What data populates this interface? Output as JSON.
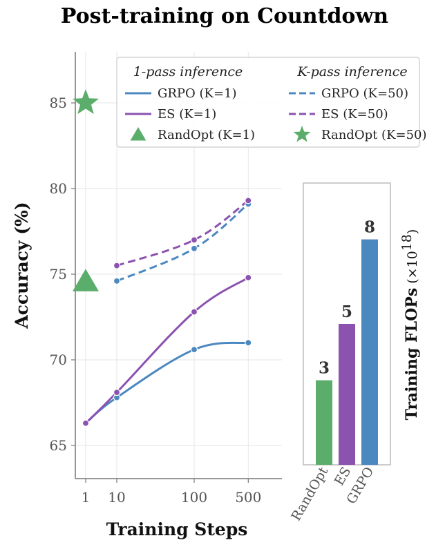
{
  "title": "Post-training on Countdown",
  "colors": {
    "grpo": "#4c88c0",
    "es": "#8b52b0",
    "randopt": "#5aad6a"
  },
  "chart_data": [
    {
      "type": "line",
      "xlabel": "Training Steps",
      "ylabel": "Accuracy (%)",
      "xscale": "log",
      "xticks": [
        {
          "value": 1,
          "label": "1"
        },
        {
          "value": 10,
          "label": "10"
        },
        {
          "value": 100,
          "label": "100"
        },
        {
          "value": 500,
          "label": "500"
        }
      ],
      "yticks": [
        {
          "value": 65,
          "label": "65"
        },
        {
          "value": 70,
          "label": "70"
        },
        {
          "value": 75,
          "label": "75"
        },
        {
          "value": 80,
          "label": "80"
        },
        {
          "value": 85,
          "label": "85"
        }
      ],
      "ylim": [
        63.0,
        88.0
      ],
      "grid": true,
      "legend": {
        "placement": "top-right",
        "headers": [
          "1-pass inference",
          "K-pass inference"
        ],
        "entries": [
          {
            "label": "GRPO (K=1)",
            "marker": "solid-line",
            "color_key": "grpo"
          },
          {
            "label": "ES (K=1)",
            "marker": "solid-line",
            "color_key": "es"
          },
          {
            "label": "RandOpt (K=1)",
            "marker": "triangle",
            "color_key": "randopt"
          },
          {
            "label": "GRPO (K=50)",
            "marker": "dashed-line",
            "color_key": "grpo"
          },
          {
            "label": "ES (K=50)",
            "marker": "dashed-line",
            "color_key": "es"
          },
          {
            "label": "RandOpt (K=50)",
            "marker": "star",
            "color_key": "randopt"
          }
        ]
      },
      "series": [
        {
          "name": "GRPO (K=1)",
          "style": "solid",
          "color_key": "grpo",
          "x": [
            1,
            10,
            100,
            500
          ],
          "y": [
            66.3,
            67.8,
            70.6,
            71.0
          ]
        },
        {
          "name": "ES (K=1)",
          "style": "solid",
          "color_key": "es",
          "x": [
            1,
            10,
            100,
            500
          ],
          "y": [
            66.3,
            68.1,
            72.8,
            74.8
          ]
        },
        {
          "name": "GRPO (K=50)",
          "style": "dashed",
          "color_key": "grpo",
          "x": [
            10,
            100,
            500
          ],
          "y": [
            74.6,
            76.5,
            79.1
          ]
        },
        {
          "name": "ES (K=50)",
          "style": "dashed",
          "color_key": "es",
          "x": [
            10,
            100,
            500
          ],
          "y": [
            75.5,
            77.0,
            79.3
          ]
        }
      ],
      "points": [
        {
          "name": "RandOpt (K=1)",
          "marker": "triangle",
          "color_key": "randopt",
          "x": 1,
          "y": 74.5
        },
        {
          "name": "RandOpt (K=50)",
          "marker": "star",
          "color_key": "randopt",
          "x": 1,
          "y": 85.0
        }
      ]
    },
    {
      "type": "bar",
      "ylabel": "Training FLOPs",
      "ylabel_unit": "(×10",
      "ylabel_unit_exp": "18",
      "ylabel_unit_close": ")",
      "ylim": [
        0,
        10
      ],
      "categories": [
        "RandOpt",
        "ES",
        "GRPO"
      ],
      "values": [
        3,
        5,
        8
      ],
      "value_labels": [
        "3",
        "5",
        "8"
      ],
      "color_keys": [
        "randopt",
        "es",
        "grpo"
      ]
    }
  ]
}
